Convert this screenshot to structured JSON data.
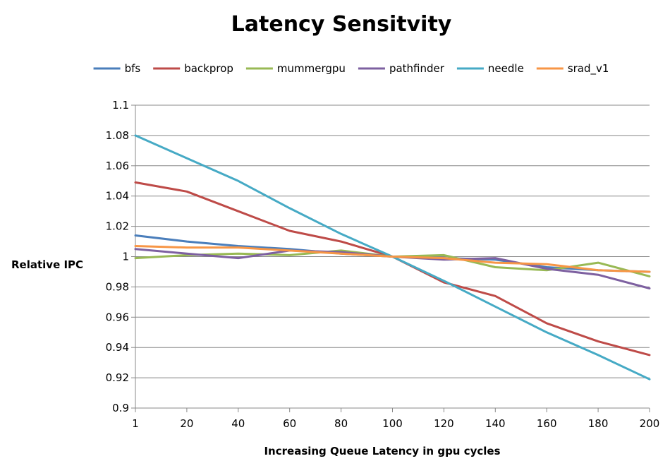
{
  "chart_data": {
    "type": "line",
    "title": "Latency Sensitvity",
    "xlabel": "Increasing Queue Latency in gpu cycles",
    "ylabel": "Relative IPC",
    "x_scale": "categorical",
    "categories": [
      "1",
      "20",
      "40",
      "60",
      "80",
      "100",
      "120",
      "140",
      "160",
      "180",
      "200"
    ],
    "ylim": [
      0.9,
      1.1
    ],
    "yticks": [
      "0.9",
      "0.92",
      "0.94",
      "0.96",
      "0.98",
      "1",
      "1.02",
      "1.04",
      "1.06",
      "1.08",
      "1.1"
    ],
    "grid": true,
    "legend_position": "top",
    "series": [
      {
        "name": "bfs",
        "color": "#4A7EBB",
        "values": [
          1.014,
          1.01,
          1.007,
          1.005,
          1.002,
          1.0,
          0.999,
          0.998,
          0.993,
          0.991,
          0.99
        ]
      },
      {
        "name": "backprop",
        "color": "#BE4B48",
        "values": [
          1.049,
          1.043,
          1.03,
          1.017,
          1.01,
          1.0,
          0.983,
          0.974,
          0.956,
          0.944,
          0.935
        ]
      },
      {
        "name": "mummergpu",
        "color": "#98B954",
        "values": [
          0.999,
          1.001,
          1.002,
          1.001,
          1.004,
          1.0,
          1.001,
          0.993,
          0.991,
          0.996,
          0.987
        ]
      },
      {
        "name": "pathfinder",
        "color": "#7D60A0",
        "values": [
          1.005,
          1.002,
          0.999,
          1.004,
          1.003,
          1.0,
          0.998,
          0.999,
          0.992,
          0.988,
          0.979
        ]
      },
      {
        "name": "needle",
        "color": "#46AAC5",
        "values": [
          1.08,
          1.065,
          1.05,
          1.032,
          1.015,
          1.0,
          0.984,
          0.967,
          0.95,
          0.935,
          0.919
        ]
      },
      {
        "name": "srad_v1",
        "color": "#F79646",
        "values": [
          1.007,
          1.006,
          1.006,
          1.004,
          1.002,
          1.0,
          0.999,
          0.996,
          0.995,
          0.991,
          0.99
        ]
      }
    ]
  }
}
